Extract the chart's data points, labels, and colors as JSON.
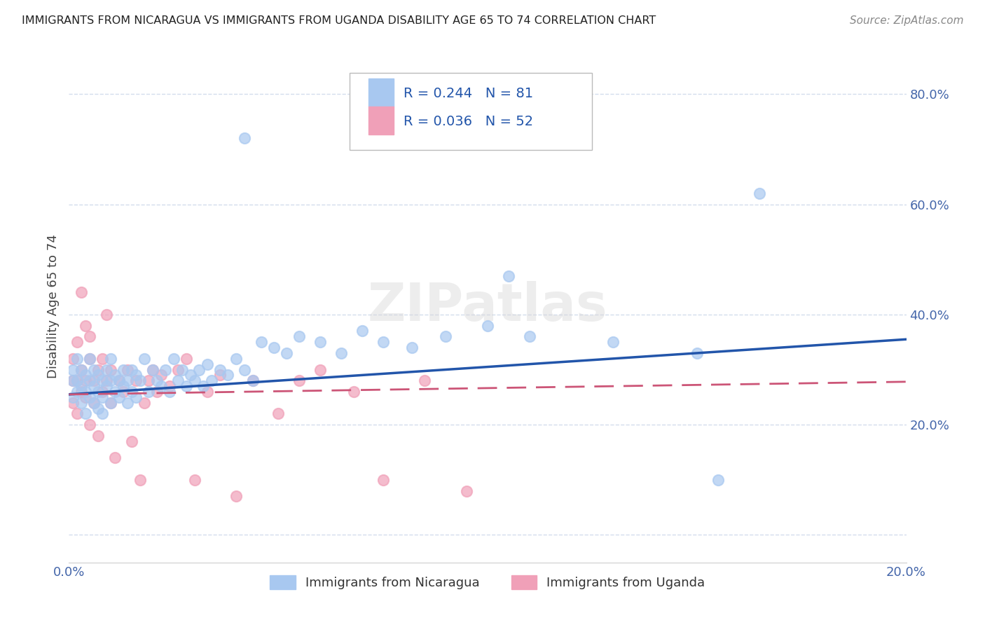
{
  "title": "IMMIGRANTS FROM NICARAGUA VS IMMIGRANTS FROM UGANDA DISABILITY AGE 65 TO 74 CORRELATION CHART",
  "source": "Source: ZipAtlas.com",
  "ylabel": "Disability Age 65 to 74",
  "xlim": [
    0.0,
    0.2
  ],
  "ylim": [
    -0.05,
    0.88
  ],
  "y_tick_vals": [
    0.0,
    0.2,
    0.4,
    0.6,
    0.8
  ],
  "y_tick_labels_right": [
    "",
    "20.0%",
    "40.0%",
    "60.0%",
    "80.0%"
  ],
  "x_tick_vals": [
    0.0,
    0.05,
    0.1,
    0.15,
    0.2
  ],
  "x_tick_labels": [
    "0.0%",
    "",
    "",
    "",
    "20.0%"
  ],
  "nicaragua_color": "#a8c8f0",
  "uganda_color": "#f0a0b8",
  "nicaragua_line_color": "#2255aa",
  "uganda_line_color": "#cc5577",
  "R_nicaragua": 0.244,
  "N_nicaragua": 81,
  "R_uganda": 0.036,
  "N_uganda": 52,
  "watermark": "ZIPatlas",
  "legend_nicaragua": "Immigrants from Nicaragua",
  "legend_uganda": "Immigrants from Uganda",
  "background_color": "#ffffff",
  "grid_color": "#c8d4e8",
  "title_color": "#222222",
  "source_color": "#888888",
  "tick_color": "#4466aa",
  "ylabel_color": "#444444",
  "nic_line_y0": 0.255,
  "nic_line_y1": 0.355,
  "uga_line_y0": 0.255,
  "uga_line_y1": 0.278
}
